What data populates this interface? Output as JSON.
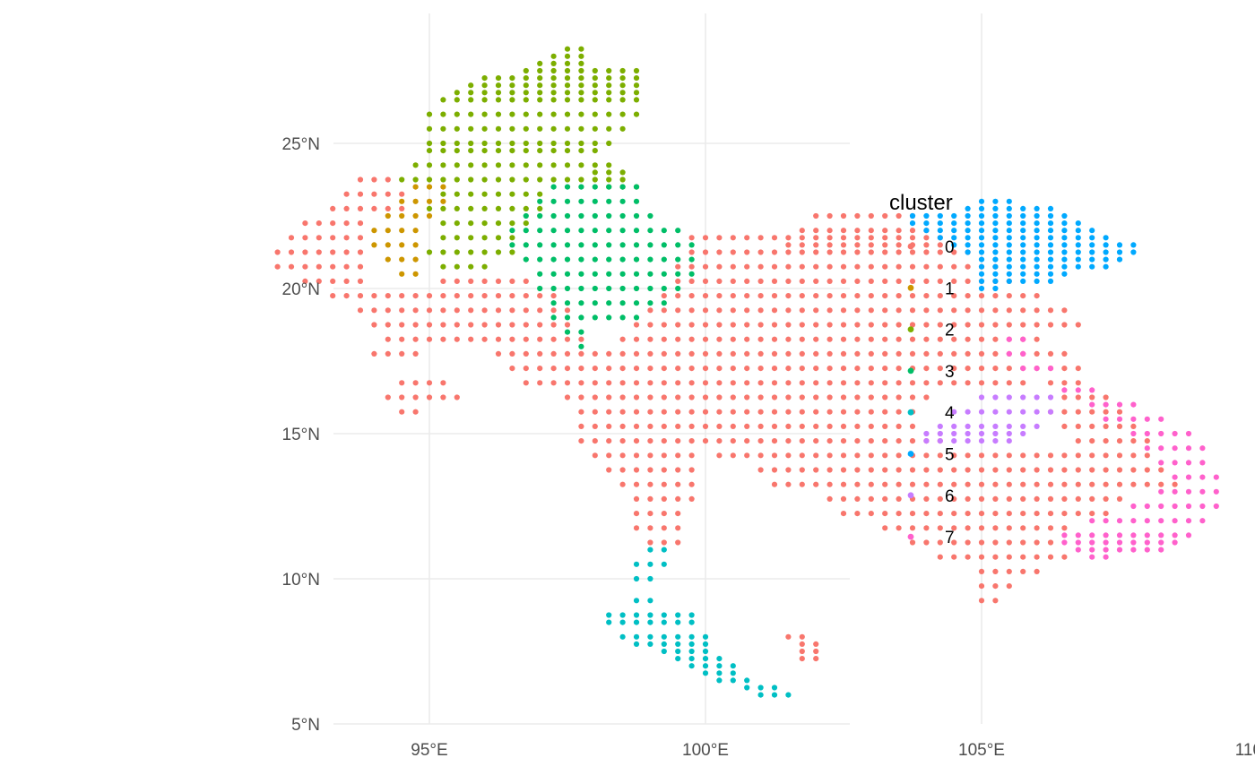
{
  "chart_data": {
    "type": "scatter",
    "subtype": "map-grid",
    "title": "",
    "xlabel": "",
    "ylabel": "",
    "xlim": [
      92,
      110
    ],
    "ylim": [
      5,
      28.5
    ],
    "x_ticks": [
      95,
      100,
      105,
      110
    ],
    "x_tick_labels": [
      "95°E",
      "100°E",
      "105°E",
      "110°E"
    ],
    "y_ticks": [
      5,
      10,
      15,
      20,
      25
    ],
    "y_tick_labels": [
      "5°N",
      "10°N",
      "15°N",
      "20°N",
      "25°N"
    ],
    "grid": true,
    "grid_step": 0.25,
    "legend": {
      "title": "cluster",
      "position": "right"
    },
    "categories": [
      "0",
      "1",
      "2",
      "3",
      "4",
      "5",
      "6",
      "7"
    ],
    "colors": {
      "0": "#F8766D",
      "1": "#CD9600",
      "2": "#7CAE00",
      "3": "#00BE67",
      "4": "#00BFC4",
      "5": "#00A9FF",
      "6": "#C77CFF",
      "7": "#FF61CC"
    },
    "series": [
      {
        "name": "0",
        "regions": [
          {
            "lon": [
              92.25,
              95.5
            ],
            "rows": [
              [
                23.75,
                93.75,
                94.25
              ],
              [
                23.25,
                93.5,
                94.5
              ],
              [
                22.75,
                93.25,
                94.5
              ],
              [
                22.25,
                92.75,
                93.75
              ],
              [
                21.75,
                92.5,
                93.75
              ],
              [
                21.25,
                92.25,
                93.75
              ],
              [
                20.75,
                92.25,
                93.75
              ],
              [
                20.25,
                92.75,
                93.75
              ],
              [
                19.75,
                93.25,
                95.5
              ],
              [
                19.25,
                93.75,
                95.5
              ],
              [
                18.75,
                94.0,
                95.5
              ],
              [
                18.25,
                94.25,
                95.25
              ]
            ]
          },
          {
            "rows": [
              [
                20.25,
                95.25,
                96.75
              ],
              [
                19.75,
                95.0,
                97.25
              ],
              [
                19.25,
                95.0,
                97.5
              ],
              [
                18.75,
                95.25,
                97.5
              ],
              [
                18.25,
                95.5,
                97.75
              ],
              [
                17.75,
                96.25,
                98.25
              ],
              [
                17.25,
                96.5,
                98.5
              ],
              [
                16.75,
                96.75,
                98.75
              ],
              [
                16.25,
                97.5,
                99.0
              ],
              [
                15.75,
                97.75,
                99.25
              ],
              [
                15.25,
                97.75,
                99.5
              ],
              [
                14.75,
                97.75,
                99.75
              ],
              [
                14.25,
                98.0,
                99.75
              ],
              [
                13.75,
                98.25,
                99.75
              ],
              [
                13.25,
                98.5,
                99.75
              ],
              [
                12.75,
                98.75,
                99.75
              ],
              [
                12.25,
                98.75,
                99.5
              ],
              [
                11.75,
                98.75,
                99.5
              ],
              [
                11.25,
                99.0,
                99.5
              ]
            ]
          },
          {
            "rows": [
              [
                17.75,
                94.0,
                94.75
              ],
              [
                16.75,
                94.5,
                95.25
              ],
              [
                16.25,
                94.25,
                95.5
              ],
              [
                15.75,
                94.5,
                94.75
              ]
            ]
          },
          {
            "rows": [
              [
                21.75,
                99.75,
                104.25
              ],
              [
                21.25,
                99.75,
                104.75
              ],
              [
                20.75,
                99.5,
                105.25
              ],
              [
                20.25,
                99.5,
                105.5
              ],
              [
                19.75,
                99.25,
                106.0
              ],
              [
                19.25,
                99.0,
                106.5
              ],
              [
                18.75,
                98.75,
                106.75
              ],
              [
                18.25,
                98.5,
                105.75
              ],
              [
                17.75,
                98.5,
                105.5
              ],
              [
                17.25,
                98.75,
                105.75
              ],
              [
                16.75,
                99.0,
                105.75
              ],
              [
                16.25,
                99.25,
                104.0
              ],
              [
                15.75,
                99.5,
                103.75
              ],
              [
                15.25,
                99.75,
                103.75
              ],
              [
                14.75,
                100.0,
                104.25
              ],
              [
                14.25,
                100.25,
                106.75
              ],
              [
                13.75,
                101.0,
                107.25
              ],
              [
                13.25,
                101.25,
                108.0
              ],
              [
                12.75,
                102.25,
                107.5
              ],
              [
                12.25,
                102.5,
                107.25
              ],
              [
                11.75,
                103.25,
                106.5
              ],
              [
                11.25,
                103.75,
                106.25
              ],
              [
                10.75,
                104.25,
                106.5
              ],
              [
                10.25,
                105.0,
                106.0
              ],
              [
                9.75,
                105.0,
                105.5
              ],
              [
                9.25,
                105.0,
                105.25
              ]
            ]
          },
          {
            "rows": [
              [
                22.5,
                102.0,
                103.75
              ],
              [
                22.0,
                101.75,
                104.0
              ],
              [
                21.5,
                101.5,
                104.25
              ]
            ]
          },
          {
            "rows": [
              [
                18.25,
                105.75,
                106.0
              ],
              [
                17.75,
                105.75,
                106.5
              ],
              [
                17.25,
                105.75,
                106.75
              ],
              [
                16.75,
                106.25,
                106.75
              ],
              [
                16.25,
                106.5,
                107.25
              ],
              [
                15.75,
                106.25,
                107.5
              ],
              [
                15.25,
                106.5,
                107.75
              ],
              [
                14.75,
                106.75,
                108.0
              ],
              [
                14.25,
                106.75,
                108.0
              ],
              [
                13.75,
                107.25,
                108.25
              ],
              [
                13.25,
                107.5,
                108.5
              ]
            ]
          },
          {
            "rows": [
              [
                8.0,
                101.5,
                101.75
              ],
              [
                7.75,
                101.75,
                102.0
              ],
              [
                7.5,
                101.75,
                102.0
              ],
              [
                7.25,
                101.75,
                102.0
              ]
            ]
          },
          {
            "rows": [
              [
                16.75,
                102.5,
                104.0
              ],
              [
                16.25,
                102.75,
                103.75
              ]
            ]
          }
        ]
      },
      {
        "name": "1",
        "regions": [
          {
            "rows": [
              [
                23.5,
                94.75,
                95.25
              ],
              [
                23.0,
                94.5,
                95.25
              ],
              [
                22.5,
                94.25,
                95.0
              ],
              [
                22.0,
                94.0,
                94.75
              ],
              [
                21.5,
                94.0,
                94.75
              ],
              [
                21.0,
                94.25,
                94.75
              ],
              [
                20.5,
                94.5,
                94.75
              ]
            ]
          }
        ]
      },
      {
        "name": "2",
        "regions": [
          {
            "rows": [
              [
                28.25,
                97.5,
                97.75
              ],
              [
                28.0,
                97.25,
                97.75
              ],
              [
                27.75,
                97.0,
                97.75
              ],
              [
                27.5,
                96.75,
                98.75
              ],
              [
                27.25,
                96.0,
                98.75
              ],
              [
                27.0,
                95.75,
                98.75
              ],
              [
                26.75,
                95.5,
                98.75
              ],
              [
                26.5,
                95.25,
                98.75
              ],
              [
                26.0,
                95.0,
                98.75
              ],
              [
                25.5,
                95.0,
                98.5
              ],
              [
                25.0,
                95.0,
                98.25
              ],
              [
                24.75,
                95.0,
                98.0
              ],
              [
                24.25,
                94.75,
                98.25
              ],
              [
                23.75,
                94.5,
                98.5
              ],
              [
                23.25,
                95.25,
                97.0
              ],
              [
                22.75,
                95.0,
                97.0
              ],
              [
                22.25,
                95.25,
                96.75
              ],
              [
                21.75,
                95.25,
                96.5
              ],
              [
                21.25,
                95.0,
                96.5
              ],
              [
                20.75,
                95.25,
                96.0
              ]
            ]
          },
          {
            "rows": [
              [
                24.0,
                98.0,
                98.5
              ],
              [
                23.5,
                98.25,
                98.75
              ]
            ]
          }
        ]
      },
      {
        "name": "3",
        "regions": [
          {
            "rows": [
              [
                23.5,
                97.25,
                98.75
              ],
              [
                23.0,
                97.0,
                98.75
              ],
              [
                22.5,
                96.75,
                99.0
              ],
              [
                22.0,
                96.5,
                99.5
              ],
              [
                21.5,
                96.5,
                99.75
              ],
              [
                21.0,
                96.75,
                99.75
              ],
              [
                20.5,
                97.0,
                99.75
              ],
              [
                20.0,
                97.0,
                99.5
              ],
              [
                19.5,
                97.25,
                99.25
              ],
              [
                19.0,
                97.25,
                98.75
              ],
              [
                18.5,
                97.5,
                97.75
              ],
              [
                18.0,
                97.75,
                97.75
              ]
            ]
          }
        ]
      },
      {
        "name": "4",
        "regions": [
          {
            "rows": [
              [
                11.0,
                99.0,
                99.25
              ],
              [
                10.5,
                98.75,
                99.25
              ],
              [
                10.0,
                98.75,
                99.0
              ],
              [
                9.25,
                98.75,
                99.0
              ],
              [
                8.75,
                98.25,
                99.75
              ],
              [
                8.5,
                98.25,
                99.75
              ],
              [
                8.0,
                98.5,
                100.0
              ],
              [
                7.75,
                98.75,
                100.0
              ],
              [
                7.5,
                99.25,
                100.0
              ],
              [
                7.25,
                99.5,
                100.25
              ],
              [
                7.0,
                99.75,
                100.5
              ],
              [
                6.75,
                100.0,
                100.5
              ],
              [
                6.5,
                100.25,
                100.75
              ],
              [
                6.25,
                100.75,
                101.25
              ],
              [
                6.0,
                101.0,
                101.5
              ]
            ]
          }
        ]
      },
      {
        "name": "5",
        "regions": [
          {
            "rows": [
              [
                23.0,
                105.0,
                105.5
              ],
              [
                22.75,
                104.75,
                106.25
              ],
              [
                22.5,
                103.75,
                106.5
              ],
              [
                22.25,
                103.75,
                106.75
              ],
              [
                22.0,
                104.0,
                107.0
              ],
              [
                21.75,
                104.25,
                107.25
              ],
              [
                21.5,
                104.5,
                107.75
              ],
              [
                21.25,
                104.75,
                107.75
              ],
              [
                21.0,
                105.0,
                107.5
              ],
              [
                20.75,
                105.0,
                107.25
              ],
              [
                20.5,
                105.0,
                106.5
              ],
              [
                20.25,
                105.0,
                106.25
              ],
              [
                20.0,
                105.0,
                105.25
              ]
            ]
          }
        ]
      },
      {
        "name": "6",
        "regions": [
          {
            "rows": [
              [
                16.25,
                105.0,
                106.25
              ],
              [
                15.75,
                104.5,
                106.25
              ],
              [
                15.25,
                104.25,
                106.0
              ],
              [
                15.0,
                104.0,
                105.75
              ],
              [
                14.75,
                104.0,
                105.5
              ]
            ]
          }
        ]
      },
      {
        "name": "7",
        "regions": [
          {
            "rows": [
              [
                18.25,
                105.5,
                105.75
              ],
              [
                17.75,
                105.5,
                105.75
              ],
              [
                17.25,
                105.75,
                106.25
              ],
              [
                16.5,
                106.5,
                107.0
              ],
              [
                16.0,
                107.0,
                107.75
              ],
              [
                15.5,
                107.25,
                108.25
              ],
              [
                15.0,
                107.75,
                108.75
              ],
              [
                14.5,
                108.0,
                109.0
              ],
              [
                14.0,
                108.25,
                109.0
              ],
              [
                13.5,
                108.5,
                109.25
              ],
              [
                13.0,
                108.25,
                109.25
              ],
              [
                12.5,
                107.75,
                109.25
              ],
              [
                12.0,
                107.0,
                109.0
              ],
              [
                11.5,
                106.5,
                108.75
              ],
              [
                11.25,
                106.5,
                108.5
              ],
              [
                11.0,
                106.75,
                108.25
              ],
              [
                10.75,
                107.0,
                107.25
              ]
            ]
          }
        ]
      }
    ]
  }
}
